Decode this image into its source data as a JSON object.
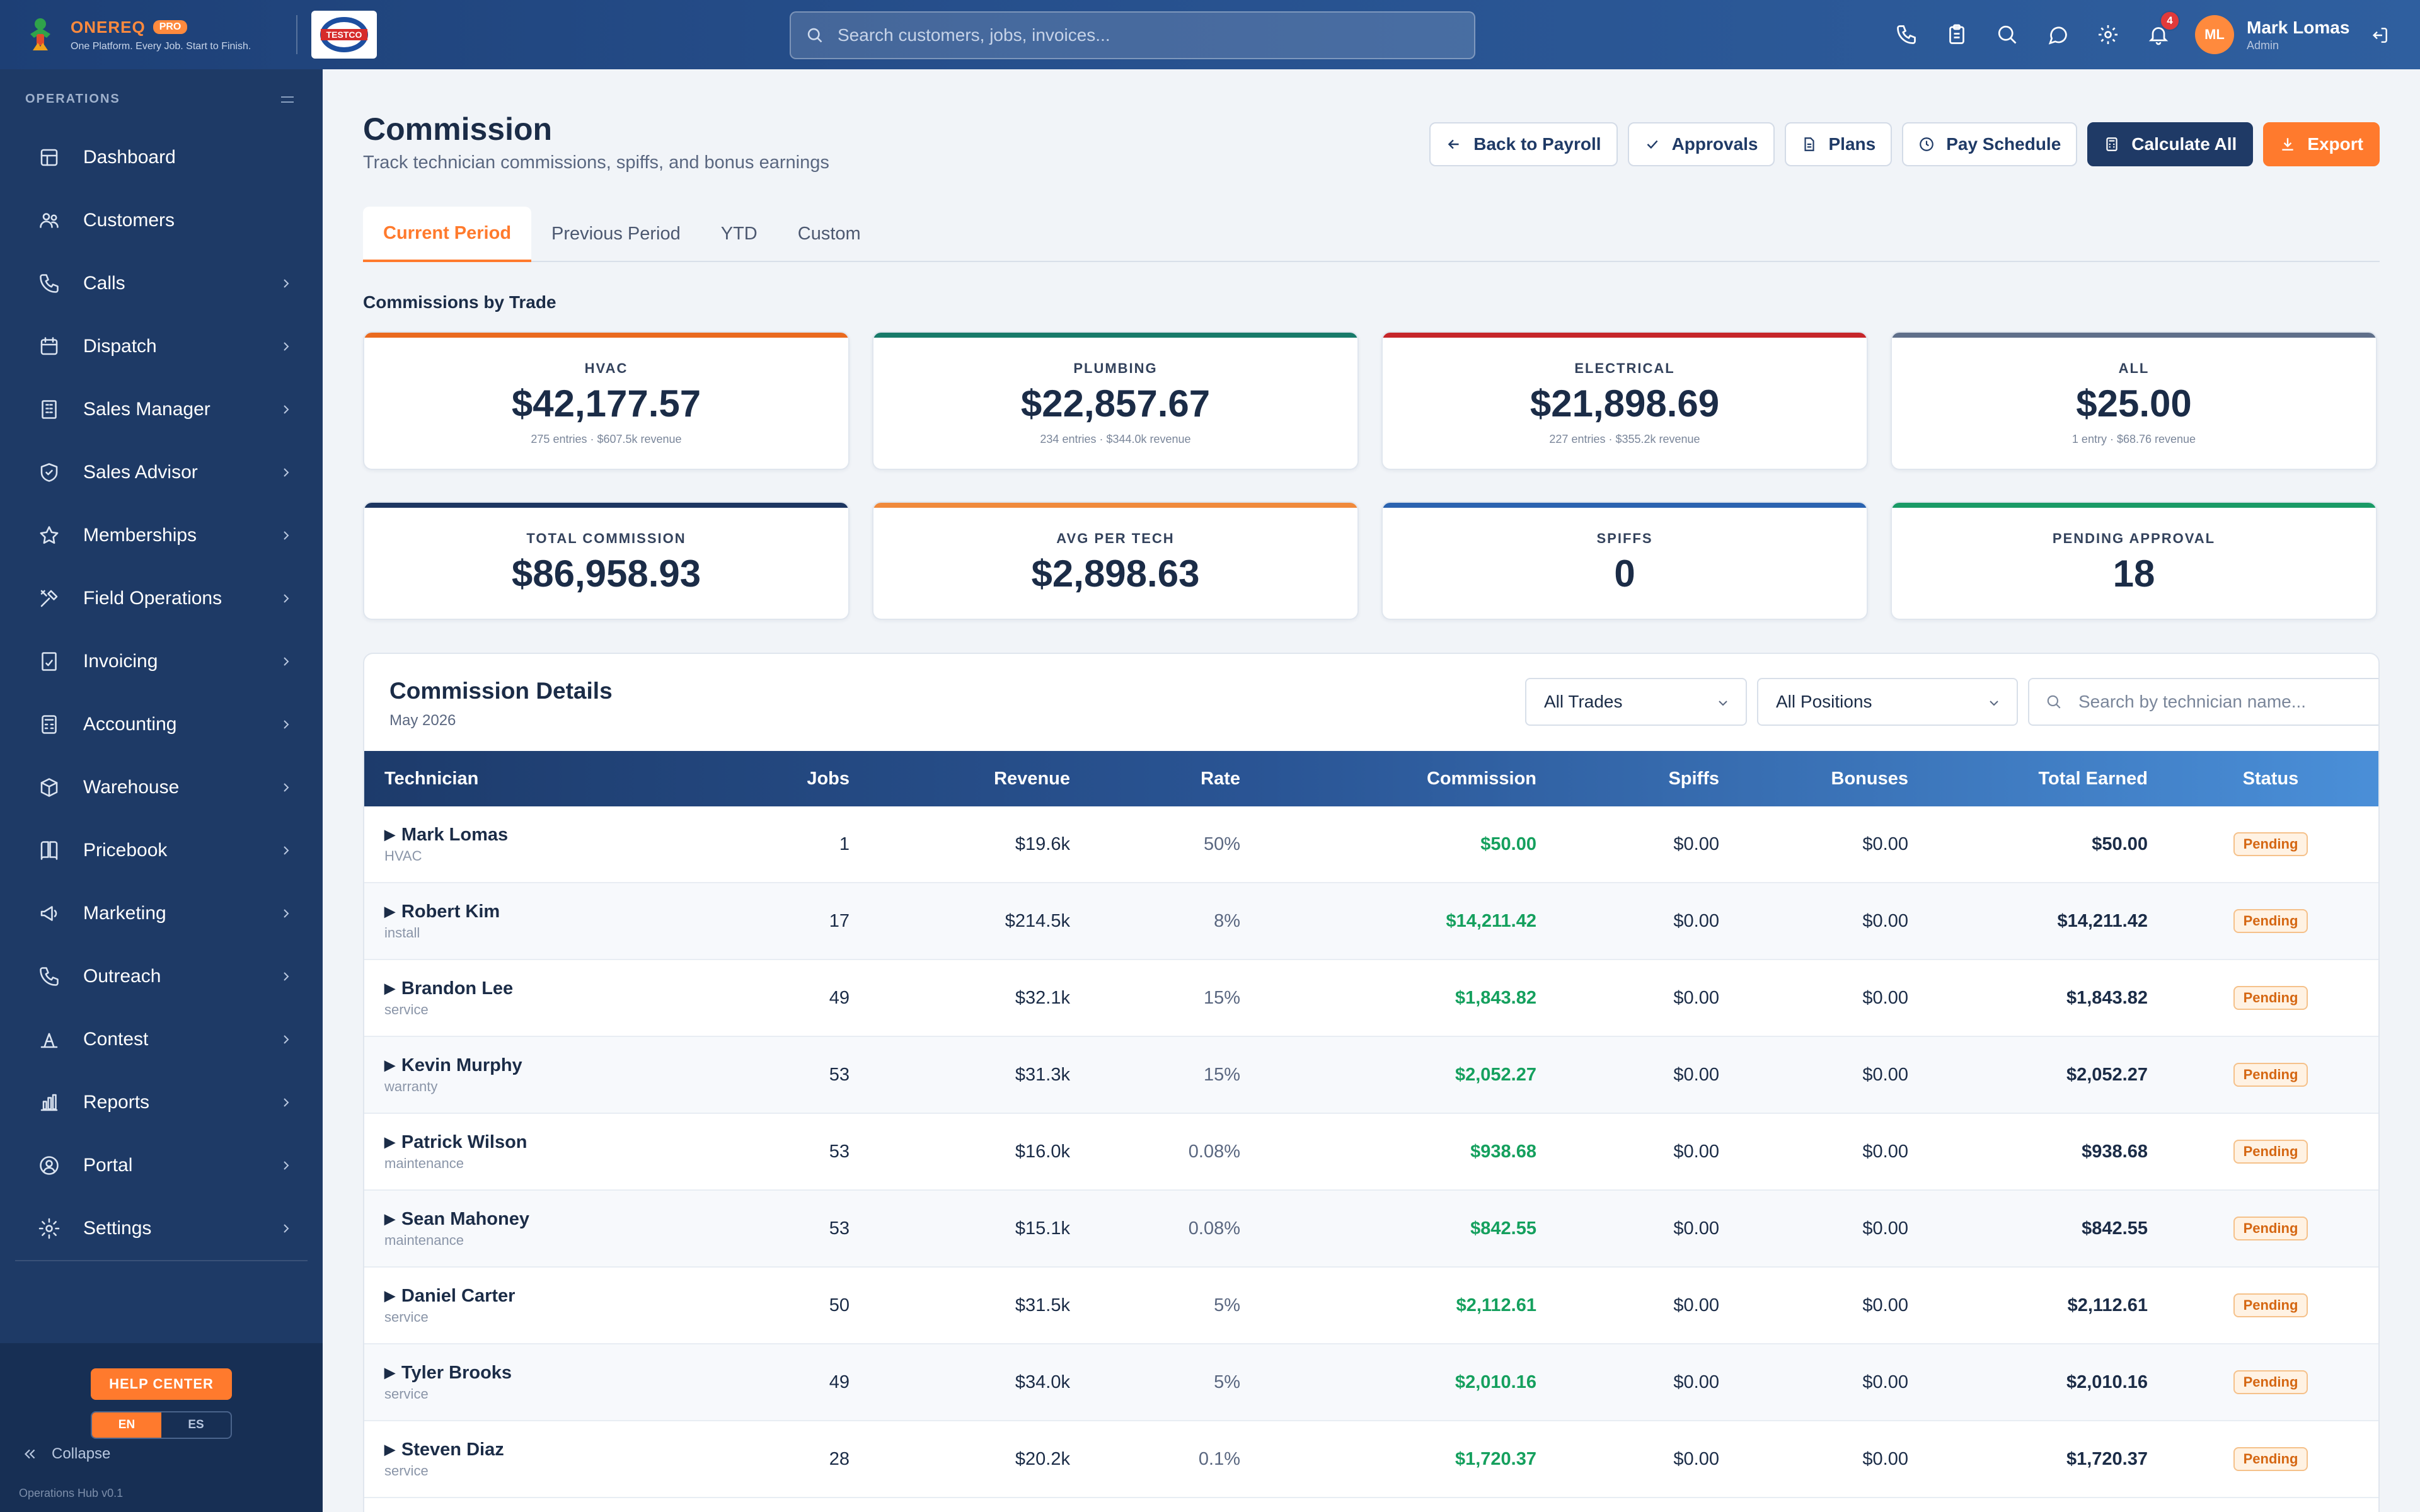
{
  "brand": {
    "name": "ONEREQ",
    "badge": "PRO",
    "tagline": "One Platform. Every Job. Start to Finish.",
    "company_logo_text": "TESTCO"
  },
  "search": {
    "placeholder": "Search customers, jobs, invoices..."
  },
  "topbar": {
    "notification_count": "4",
    "icons": [
      "phone-icon",
      "clipboard-icon",
      "search-icon",
      "chat-icon",
      "gear-icon",
      "bell-icon"
    ]
  },
  "user": {
    "initials": "ML",
    "name": "Mark Lomas",
    "role": "Admin"
  },
  "sidebar": {
    "section_label": "OPERATIONS",
    "items": [
      {
        "label": "Dashboard",
        "icon": "dashboard-icon",
        "chevron": false
      },
      {
        "label": "Customers",
        "icon": "users-icon",
        "chevron": false
      },
      {
        "label": "Calls",
        "icon": "phone-icon",
        "chevron": true
      },
      {
        "label": "Dispatch",
        "icon": "calendar-icon",
        "chevron": true
      },
      {
        "label": "Sales Manager",
        "icon": "building-icon",
        "chevron": true
      },
      {
        "label": "Sales Advisor",
        "icon": "shield-icon",
        "chevron": true
      },
      {
        "label": "Memberships",
        "icon": "star-icon",
        "chevron": true
      },
      {
        "label": "Field Operations",
        "icon": "tools-icon",
        "chevron": true
      },
      {
        "label": "Invoicing",
        "icon": "invoice-icon",
        "chevron": true
      },
      {
        "label": "Accounting",
        "icon": "calculator-icon",
        "chevron": true
      },
      {
        "label": "Warehouse",
        "icon": "box-icon",
        "chevron": true
      },
      {
        "label": "Pricebook",
        "icon": "book-icon",
        "chevron": true
      },
      {
        "label": "Marketing",
        "icon": "megaphone-icon",
        "chevron": true
      },
      {
        "label": "Outreach",
        "icon": "phone-outgoing-icon",
        "chevron": true
      },
      {
        "label": "Contest",
        "icon": "trophy-icon",
        "chevron": true
      },
      {
        "label": "Reports",
        "icon": "bar-chart-icon",
        "chevron": true
      },
      {
        "label": "Portal",
        "icon": "user-circle-icon",
        "chevron": true
      },
      {
        "label": "Settings",
        "icon": "gear-icon",
        "chevron": true
      }
    ],
    "help_label": "HELP CENTER",
    "lang": {
      "en": "EN",
      "es": "ES"
    },
    "collapse_label": "Collapse",
    "version": "Operations Hub v0.1"
  },
  "page": {
    "title": "Commission",
    "subtitle": "Track technician commissions, spiffs, and bonus earnings"
  },
  "actions": {
    "back": "Back to Payroll",
    "approvals": "Approvals",
    "plans": "Plans",
    "schedule": "Pay Schedule",
    "calculate": "Calculate All",
    "export": "Export"
  },
  "tabs": [
    "Current Period",
    "Previous Period",
    "YTD",
    "Custom"
  ],
  "trade_section_title": "Commissions by Trade",
  "trade_cards": [
    {
      "label": "HVAC",
      "value": "$42,177.57",
      "meta": "275 entries · $607.5k revenue",
      "color": "#ea6a1f"
    },
    {
      "label": "PLUMBING",
      "value": "$22,857.67",
      "meta": "234 entries · $344.0k revenue",
      "color": "#187a6a"
    },
    {
      "label": "ELECTRICAL",
      "value": "$21,898.69",
      "meta": "227 entries · $355.2k revenue",
      "color": "#c6262a"
    },
    {
      "label": "ALL",
      "value": "$25.00",
      "meta": "1 entry · $68.76 revenue",
      "color": "#5f6f8a"
    }
  ],
  "summary_cards": [
    {
      "label": "TOTAL COMMISSION",
      "value": "$86,958.93",
      "color": "#1d3661"
    },
    {
      "label": "AVG PER TECH",
      "value": "$2,898.63",
      "color": "#f08a3c"
    },
    {
      "label": "SPIFFS",
      "value": "0",
      "color": "#2b63b0"
    },
    {
      "label": "PENDING APPROVAL",
      "value": "18",
      "color": "#1a9a66"
    }
  ],
  "table": {
    "title": "Commission Details",
    "period": "May 2026",
    "filter_trade": "All Trades",
    "filter_position": "All Positions",
    "search_placeholder": "Search by technician name...",
    "columns": [
      "Technician",
      "Jobs",
      "Revenue",
      "Rate",
      "Commission",
      "Spiffs",
      "Bonuses",
      "Total Earned",
      "Status"
    ],
    "rows": [
      {
        "name": "Mark Lomas",
        "type": "HVAC",
        "jobs": "1",
        "revenue": "$19.6k",
        "rate": "50%",
        "commission": "$50.00",
        "spiffs": "$0.00",
        "bonuses": "$0.00",
        "total": "$50.00",
        "status": "Pending"
      },
      {
        "name": "Robert Kim",
        "type": "install",
        "jobs": "17",
        "revenue": "$214.5k",
        "rate": "8%",
        "commission": "$14,211.42",
        "spiffs": "$0.00",
        "bonuses": "$0.00",
        "total": "$14,211.42",
        "status": "Pending"
      },
      {
        "name": "Brandon Lee",
        "type": "service",
        "jobs": "49",
        "revenue": "$32.1k",
        "rate": "15%",
        "commission": "$1,843.82",
        "spiffs": "$0.00",
        "bonuses": "$0.00",
        "total": "$1,843.82",
        "status": "Pending"
      },
      {
        "name": "Kevin Murphy",
        "type": "warranty",
        "jobs": "53",
        "revenue": "$31.3k",
        "rate": "15%",
        "commission": "$2,052.27",
        "spiffs": "$0.00",
        "bonuses": "$0.00",
        "total": "$2,052.27",
        "status": "Pending"
      },
      {
        "name": "Patrick Wilson",
        "type": "maintenance",
        "jobs": "53",
        "revenue": "$16.0k",
        "rate": "0.08%",
        "commission": "$938.68",
        "spiffs": "$0.00",
        "bonuses": "$0.00",
        "total": "$938.68",
        "status": "Pending"
      },
      {
        "name": "Sean Mahoney",
        "type": "maintenance",
        "jobs": "53",
        "revenue": "$15.1k",
        "rate": "0.08%",
        "commission": "$842.55",
        "spiffs": "$0.00",
        "bonuses": "$0.00",
        "total": "$842.55",
        "status": "Pending"
      },
      {
        "name": "Daniel Carter",
        "type": "service",
        "jobs": "50",
        "revenue": "$31.5k",
        "rate": "5%",
        "commission": "$2,112.61",
        "spiffs": "$0.00",
        "bonuses": "$0.00",
        "total": "$2,112.61",
        "status": "Pending"
      },
      {
        "name": "Tyler Brooks",
        "type": "service",
        "jobs": "49",
        "revenue": "$34.0k",
        "rate": "5%",
        "commission": "$2,010.16",
        "spiffs": "$0.00",
        "bonuses": "$0.00",
        "total": "$2,010.16",
        "status": "Pending"
      },
      {
        "name": "Steven Diaz",
        "type": "service",
        "jobs": "28",
        "revenue": "$20.2k",
        "rate": "0.1%",
        "commission": "$1,720.37",
        "spiffs": "$0.00",
        "bonuses": "$0.00",
        "total": "$1,720.37",
        "status": "Pending"
      }
    ]
  }
}
